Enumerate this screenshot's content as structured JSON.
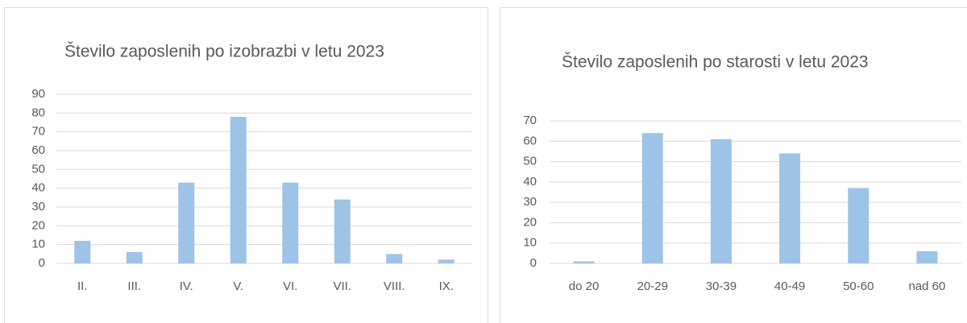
{
  "chart_data": [
    {
      "type": "bar",
      "title": "Število zaposlenih po izobrazbi v letu 2023",
      "categories": [
        "II.",
        "III.",
        "IV.",
        "V.",
        "VI.",
        "VII.",
        "VIII.",
        "IX."
      ],
      "values": [
        12,
        6,
        43,
        78,
        43,
        34,
        5,
        2
      ],
      "color": "#9dc3e6",
      "ylim": [
        0,
        90
      ],
      "yticks": [
        0,
        10,
        20,
        30,
        40,
        50,
        60,
        70,
        80,
        90
      ],
      "grid": true
    },
    {
      "type": "bar",
      "title": "Število zaposlenih po starosti v letu 2023",
      "categories": [
        "do 20",
        "20-29",
        "30-39",
        "40-49",
        "50-60",
        "nad 60"
      ],
      "values": [
        1,
        64,
        61,
        54,
        37,
        6
      ],
      "color": "#9dc3e6",
      "ylim": [
        0,
        70
      ],
      "yticks": [
        0,
        10,
        20,
        30,
        40,
        50,
        60,
        70
      ],
      "grid": true
    }
  ]
}
